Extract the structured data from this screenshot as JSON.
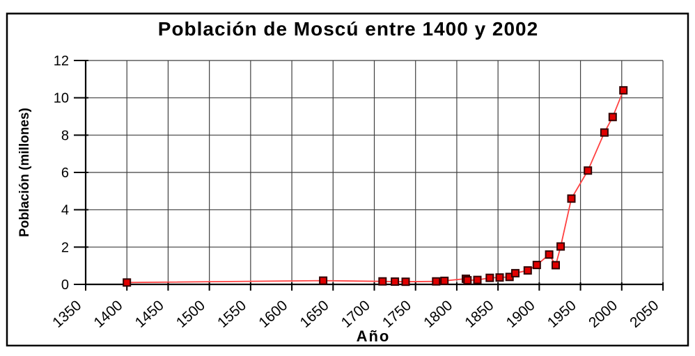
{
  "chart_data": {
    "type": "line",
    "title": "Población de Moscú entre 1400 y 2002",
    "xlabel": "Año",
    "ylabel": "Población (millones)",
    "xlim": [
      1350,
      2050
    ],
    "ylim": [
      0,
      12
    ],
    "x_ticks": [
      1350,
      1400,
      1450,
      1500,
      1550,
      1600,
      1650,
      1700,
      1750,
      1800,
      1850,
      1900,
      1950,
      2000,
      2050
    ],
    "y_ticks": [
      0,
      2,
      4,
      6,
      8,
      10,
      12
    ],
    "grid": true,
    "legend": false,
    "colors": {
      "line": "#ff4040",
      "marker_fill": "#e00000",
      "marker_border": "#300000",
      "gridline": "#3f3f3f",
      "axis": "#000000",
      "frame_border": "#000000",
      "background": "#ffffff",
      "text": "#000000"
    },
    "series": [
      {
        "marker": "square",
        "points": [
          [
            1400,
            0.1
          ],
          [
            1638,
            0.2
          ],
          [
            1710,
            0.16
          ],
          [
            1725,
            0.15
          ],
          [
            1738,
            0.14
          ],
          [
            1775,
            0.16
          ],
          [
            1785,
            0.19
          ],
          [
            1811,
            0.3
          ],
          [
            1813,
            0.22
          ],
          [
            1825,
            0.24
          ],
          [
            1840,
            0.35
          ],
          [
            1852,
            0.37
          ],
          [
            1864,
            0.4
          ],
          [
            1871,
            0.6
          ],
          [
            1886,
            0.75
          ],
          [
            1897,
            1.04
          ],
          [
            1912,
            1.6
          ],
          [
            1920,
            1.03
          ],
          [
            1926,
            2.03
          ],
          [
            1939,
            4.6
          ],
          [
            1959,
            6.1
          ],
          [
            1979,
            8.14
          ],
          [
            1989,
            8.97
          ],
          [
            2002,
            10.4
          ]
        ]
      }
    ]
  }
}
